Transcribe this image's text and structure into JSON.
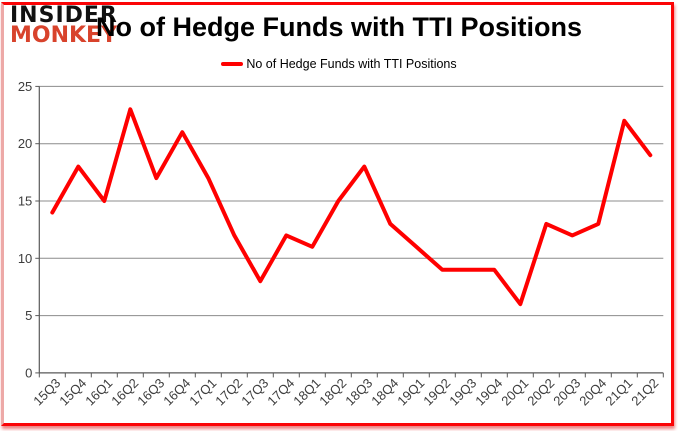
{
  "logo": {
    "line1": "INSIDER",
    "line2": "MONKEY"
  },
  "header": {
    "title": "No of Hedge Funds with TTI Positions"
  },
  "legend": {
    "label": "No of Hedge Funds with TTI Positions"
  },
  "colors": {
    "series_line": "#FF0000",
    "logo_monkey": "#D8432C",
    "logo_insider": "#111111",
    "grid_line": "#8C8C8C",
    "axis_line": "#595959",
    "tick_label": "#3D3D3D",
    "frame_border": "#FB0406"
  },
  "chart_data": {
    "type": "line",
    "title": "No of Hedge Funds with TTI Positions",
    "categories": [
      "15Q3",
      "15Q4",
      "16Q1",
      "16Q2",
      "16Q3",
      "16Q4",
      "17Q1",
      "17Q2",
      "17Q3",
      "17Q4",
      "18Q1",
      "18Q2",
      "18Q3",
      "18Q4",
      "19Q1",
      "19Q2",
      "19Q3",
      "19Q4",
      "20Q1",
      "20Q2",
      "20Q3",
      "20Q4",
      "21Q1",
      "21Q2"
    ],
    "series": [
      {
        "name": "No of Hedge Funds with TTI Positions",
        "values": [
          14,
          18,
          15,
          23,
          17,
          21,
          17,
          12,
          8,
          12,
          11,
          15,
          18,
          13,
          11,
          9,
          9,
          9,
          6,
          13,
          12,
          13,
          22,
          19
        ]
      }
    ],
    "xlabel": "",
    "ylabel": "",
    "ylim": [
      0,
      25
    ],
    "yticks": [
      0,
      5,
      10,
      15,
      20,
      25
    ],
    "grid": true,
    "legend_position": "top"
  }
}
